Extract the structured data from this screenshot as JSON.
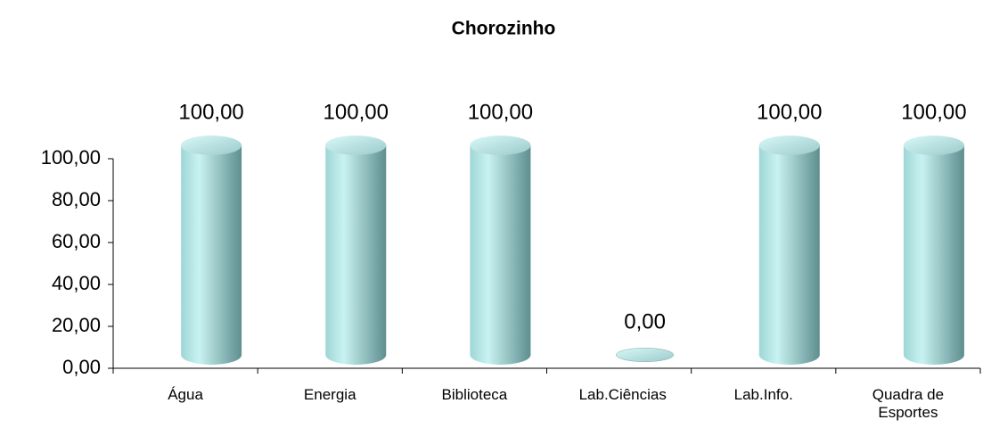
{
  "chart_data": {
    "type": "bar",
    "title": "Chorozinho",
    "categories": [
      "Água",
      "Energia",
      "Biblioteca",
      "Lab.Ciências",
      "Lab.Info.",
      "Quadra de Esportes"
    ],
    "values": [
      100,
      100,
      100,
      0,
      100,
      100
    ],
    "value_labels": [
      "100,00",
      "100,00",
      "100,00",
      "0,00",
      "100,00",
      "100,00"
    ],
    "color": "#8fc4c4",
    "ylim": [
      0,
      100
    ],
    "yticks": [
      {
        "value": 0,
        "label": "0,00"
      },
      {
        "value": 20,
        "label": "20,00"
      },
      {
        "value": 40,
        "label": "40,00"
      },
      {
        "value": 60,
        "label": "60,00"
      },
      {
        "value": 80,
        "label": "80,00"
      },
      {
        "value": 100,
        "label": "100,00"
      }
    ],
    "grid": false
  }
}
